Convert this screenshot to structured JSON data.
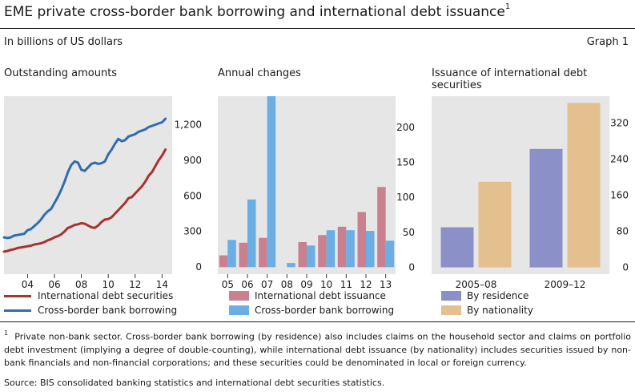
{
  "header": {
    "title": "EME private cross-border bank borrowing and international debt issuance",
    "title_note": "1",
    "units": "In billions of US dollars",
    "graph_label": "Graph 1"
  },
  "colors": {
    "panel_bg": "#e6e6e6",
    "debt_line": "#a83232",
    "bank_line": "#2f6db0",
    "debt_bar": "#c98190",
    "bank_bar": "#6aaee3",
    "residence": "#8c90c8",
    "nationality": "#e3c08e"
  },
  "chart_data": [
    {
      "panel_title": "Outstanding amounts",
      "type": "line",
      "x_tick_labels": [
        "04",
        "06",
        "08",
        "10",
        "12",
        "14"
      ],
      "x_ticks": [
        2004,
        2006,
        2008,
        2010,
        2012,
        2014
      ],
      "xlim": [
        2002.25,
        2014.75
      ],
      "ylim": [
        -60,
        1440
      ],
      "y_ticks": [
        0,
        300,
        600,
        900,
        1200
      ],
      "y_tick_labels": [
        "0",
        "300",
        "600",
        "900",
        "1,200"
      ],
      "grid": false,
      "series": [
        {
          "name": "International debt securities",
          "color_key": "debt_line",
          "x": [
            2002.25,
            2002.5,
            2002.75,
            2003,
            2003.25,
            2003.5,
            2003.75,
            2004,
            2004.25,
            2004.5,
            2004.75,
            2005,
            2005.25,
            2005.5,
            2005.75,
            2006,
            2006.25,
            2006.5,
            2006.75,
            2007,
            2007.25,
            2007.5,
            2007.75,
            2008,
            2008.25,
            2008.5,
            2008.75,
            2009,
            2009.25,
            2009.5,
            2009.75,
            2010,
            2010.25,
            2010.5,
            2010.75,
            2011,
            2011.25,
            2011.5,
            2011.75,
            2012,
            2012.25,
            2012.5,
            2012.75,
            2013,
            2013.25,
            2013.5,
            2013.75,
            2014,
            2014.25
          ],
          "values": [
            130,
            135,
            145,
            150,
            160,
            165,
            170,
            175,
            180,
            190,
            195,
            200,
            210,
            225,
            235,
            250,
            260,
            275,
            300,
            330,
            340,
            355,
            360,
            370,
            365,
            350,
            335,
            330,
            350,
            380,
            400,
            405,
            420,
            450,
            480,
            510,
            540,
            580,
            590,
            620,
            650,
            680,
            720,
            770,
            800,
            850,
            900,
            940,
            990
          ]
        },
        {
          "name": "Cross-border bank borrowing",
          "color_key": "bank_line",
          "x": [
            2002.25,
            2002.5,
            2002.75,
            2003,
            2003.25,
            2003.5,
            2003.75,
            2004,
            2004.25,
            2004.5,
            2004.75,
            2005,
            2005.25,
            2005.5,
            2005.75,
            2006,
            2006.25,
            2006.5,
            2006.75,
            2007,
            2007.25,
            2007.5,
            2007.75,
            2008,
            2008.25,
            2008.5,
            2008.75,
            2009,
            2009.25,
            2009.5,
            2009.75,
            2010,
            2010.25,
            2010.5,
            2010.75,
            2011,
            2011.25,
            2011.5,
            2011.75,
            2012,
            2012.25,
            2012.5,
            2012.75,
            2013,
            2013.25,
            2013.5,
            2013.75,
            2014,
            2014.25
          ],
          "values": [
            250,
            245,
            250,
            265,
            270,
            275,
            280,
            310,
            320,
            345,
            370,
            400,
            440,
            470,
            490,
            540,
            590,
            650,
            720,
            800,
            860,
            890,
            880,
            820,
            810,
            840,
            870,
            880,
            870,
            875,
            890,
            950,
            990,
            1040,
            1080,
            1060,
            1070,
            1100,
            1110,
            1120,
            1140,
            1150,
            1160,
            1180,
            1190,
            1200,
            1210,
            1220,
            1250
          ]
        }
      ]
    },
    {
      "panel_title": "Annual changes",
      "type": "bar",
      "categories": [
        "05",
        "06",
        "07",
        "08",
        "09",
        "10",
        "11",
        "12",
        "13"
      ],
      "ylim": [
        -10,
        245
      ],
      "y_ticks": [
        0,
        50,
        100,
        150,
        200
      ],
      "y_tick_labels": [
        "0",
        "50",
        "100",
        "150",
        "200"
      ],
      "grid": false,
      "series": [
        {
          "name": "International debt issuance",
          "color_key": "debt_bar",
          "values": [
            17,
            35,
            42,
            0,
            36,
            46,
            58,
            79,
            115
          ]
        },
        {
          "name": "Cross-border bank borrowing",
          "color_key": "bank_bar",
          "values": [
            39,
            97,
            245,
            6,
            31,
            53,
            53,
            52,
            38
          ]
        }
      ]
    },
    {
      "panel_title": "Issuance of international debt securities",
      "type": "bar",
      "categories": [
        "2005–08",
        "2009–12"
      ],
      "ylim": [
        -15,
        380
      ],
      "y_ticks": [
        0,
        80,
        160,
        240,
        320
      ],
      "y_tick_labels": [
        "0",
        "80",
        "160",
        "240",
        "320"
      ],
      "grid": false,
      "series": [
        {
          "name": "By residence",
          "color_key": "residence",
          "values": [
            89,
            263
          ]
        },
        {
          "name": "By nationality",
          "color_key": "nationality",
          "values": [
            190,
            365
          ]
        }
      ]
    }
  ],
  "footnote": {
    "marker": "1",
    "text": "Private non-bank sector. Cross-border bank borrowing (by residence) also includes claims on the household sector and claims on portfolio debt investment (implying a degree of double-counting), while international debt issuance (by nationality) includes securities issued by non-bank financials and non-financial corporations; and these securities could be denominated in local or foreign currency."
  },
  "source": "Source: BIS consolidated banking statistics and international debt securities statistics."
}
